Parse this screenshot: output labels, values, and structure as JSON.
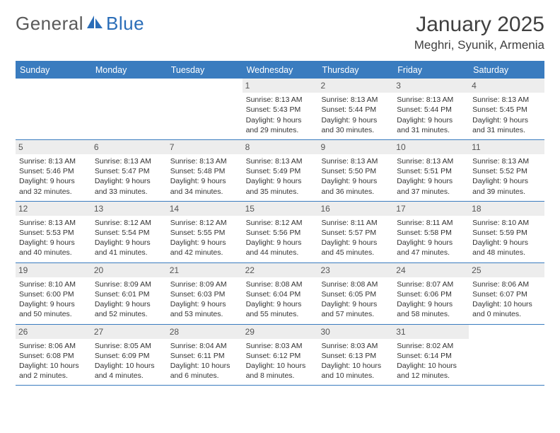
{
  "logo": {
    "word1": "General",
    "word2": "Blue",
    "word1_color": "#5a5a5a",
    "word2_color": "#2a6db8",
    "icon_color": "#2a6db8"
  },
  "title": "January 2025",
  "location": "Meghri, Syunik, Armenia",
  "colors": {
    "header_bg": "#3a7cbf",
    "header_text": "#ffffff",
    "border": "#3a7cbf",
    "daynum_bg": "#ededed",
    "daynum_text": "#555555",
    "body_text": "#333333"
  },
  "font": {
    "family": "Arial",
    "title_size": 30,
    "location_size": 17,
    "weekday_size": 12.5,
    "daynum_size": 12,
    "cell_size": 10.5
  },
  "weekdays": [
    "Sunday",
    "Monday",
    "Tuesday",
    "Wednesday",
    "Thursday",
    "Friday",
    "Saturday"
  ],
  "weeks": [
    [
      {
        "empty": true
      },
      {
        "empty": true
      },
      {
        "empty": true
      },
      {
        "num": "1",
        "sunrise": "8:13 AM",
        "sunset": "5:43 PM",
        "dl1": "Daylight: 9 hours",
        "dl2": "and 29 minutes."
      },
      {
        "num": "2",
        "sunrise": "8:13 AM",
        "sunset": "5:44 PM",
        "dl1": "Daylight: 9 hours",
        "dl2": "and 30 minutes."
      },
      {
        "num": "3",
        "sunrise": "8:13 AM",
        "sunset": "5:44 PM",
        "dl1": "Daylight: 9 hours",
        "dl2": "and 31 minutes."
      },
      {
        "num": "4",
        "sunrise": "8:13 AM",
        "sunset": "5:45 PM",
        "dl1": "Daylight: 9 hours",
        "dl2": "and 31 minutes."
      }
    ],
    [
      {
        "num": "5",
        "sunrise": "8:13 AM",
        "sunset": "5:46 PM",
        "dl1": "Daylight: 9 hours",
        "dl2": "and 32 minutes."
      },
      {
        "num": "6",
        "sunrise": "8:13 AM",
        "sunset": "5:47 PM",
        "dl1": "Daylight: 9 hours",
        "dl2": "and 33 minutes."
      },
      {
        "num": "7",
        "sunrise": "8:13 AM",
        "sunset": "5:48 PM",
        "dl1": "Daylight: 9 hours",
        "dl2": "and 34 minutes."
      },
      {
        "num": "8",
        "sunrise": "8:13 AM",
        "sunset": "5:49 PM",
        "dl1": "Daylight: 9 hours",
        "dl2": "and 35 minutes."
      },
      {
        "num": "9",
        "sunrise": "8:13 AM",
        "sunset": "5:50 PM",
        "dl1": "Daylight: 9 hours",
        "dl2": "and 36 minutes."
      },
      {
        "num": "10",
        "sunrise": "8:13 AM",
        "sunset": "5:51 PM",
        "dl1": "Daylight: 9 hours",
        "dl2": "and 37 minutes."
      },
      {
        "num": "11",
        "sunrise": "8:13 AM",
        "sunset": "5:52 PM",
        "dl1": "Daylight: 9 hours",
        "dl2": "and 39 minutes."
      }
    ],
    [
      {
        "num": "12",
        "sunrise": "8:13 AM",
        "sunset": "5:53 PM",
        "dl1": "Daylight: 9 hours",
        "dl2": "and 40 minutes."
      },
      {
        "num": "13",
        "sunrise": "8:12 AM",
        "sunset": "5:54 PM",
        "dl1": "Daylight: 9 hours",
        "dl2": "and 41 minutes."
      },
      {
        "num": "14",
        "sunrise": "8:12 AM",
        "sunset": "5:55 PM",
        "dl1": "Daylight: 9 hours",
        "dl2": "and 42 minutes."
      },
      {
        "num": "15",
        "sunrise": "8:12 AM",
        "sunset": "5:56 PM",
        "dl1": "Daylight: 9 hours",
        "dl2": "and 44 minutes."
      },
      {
        "num": "16",
        "sunrise": "8:11 AM",
        "sunset": "5:57 PM",
        "dl1": "Daylight: 9 hours",
        "dl2": "and 45 minutes."
      },
      {
        "num": "17",
        "sunrise": "8:11 AM",
        "sunset": "5:58 PM",
        "dl1": "Daylight: 9 hours",
        "dl2": "and 47 minutes."
      },
      {
        "num": "18",
        "sunrise": "8:10 AM",
        "sunset": "5:59 PM",
        "dl1": "Daylight: 9 hours",
        "dl2": "and 48 minutes."
      }
    ],
    [
      {
        "num": "19",
        "sunrise": "8:10 AM",
        "sunset": "6:00 PM",
        "dl1": "Daylight: 9 hours",
        "dl2": "and 50 minutes."
      },
      {
        "num": "20",
        "sunrise": "8:09 AM",
        "sunset": "6:01 PM",
        "dl1": "Daylight: 9 hours",
        "dl2": "and 52 minutes."
      },
      {
        "num": "21",
        "sunrise": "8:09 AM",
        "sunset": "6:03 PM",
        "dl1": "Daylight: 9 hours",
        "dl2": "and 53 minutes."
      },
      {
        "num": "22",
        "sunrise": "8:08 AM",
        "sunset": "6:04 PM",
        "dl1": "Daylight: 9 hours",
        "dl2": "and 55 minutes."
      },
      {
        "num": "23",
        "sunrise": "8:08 AM",
        "sunset": "6:05 PM",
        "dl1": "Daylight: 9 hours",
        "dl2": "and 57 minutes."
      },
      {
        "num": "24",
        "sunrise": "8:07 AM",
        "sunset": "6:06 PM",
        "dl1": "Daylight: 9 hours",
        "dl2": "and 58 minutes."
      },
      {
        "num": "25",
        "sunrise": "8:06 AM",
        "sunset": "6:07 PM",
        "dl1": "Daylight: 10 hours",
        "dl2": "and 0 minutes."
      }
    ],
    [
      {
        "num": "26",
        "sunrise": "8:06 AM",
        "sunset": "6:08 PM",
        "dl1": "Daylight: 10 hours",
        "dl2": "and 2 minutes."
      },
      {
        "num": "27",
        "sunrise": "8:05 AM",
        "sunset": "6:09 PM",
        "dl1": "Daylight: 10 hours",
        "dl2": "and 4 minutes."
      },
      {
        "num": "28",
        "sunrise": "8:04 AM",
        "sunset": "6:11 PM",
        "dl1": "Daylight: 10 hours",
        "dl2": "and 6 minutes."
      },
      {
        "num": "29",
        "sunrise": "8:03 AM",
        "sunset": "6:12 PM",
        "dl1": "Daylight: 10 hours",
        "dl2": "and 8 minutes."
      },
      {
        "num": "30",
        "sunrise": "8:03 AM",
        "sunset": "6:13 PM",
        "dl1": "Daylight: 10 hours",
        "dl2": "and 10 minutes."
      },
      {
        "num": "31",
        "sunrise": "8:02 AM",
        "sunset": "6:14 PM",
        "dl1": "Daylight: 10 hours",
        "dl2": "and 12 minutes."
      },
      {
        "empty": true
      }
    ]
  ]
}
